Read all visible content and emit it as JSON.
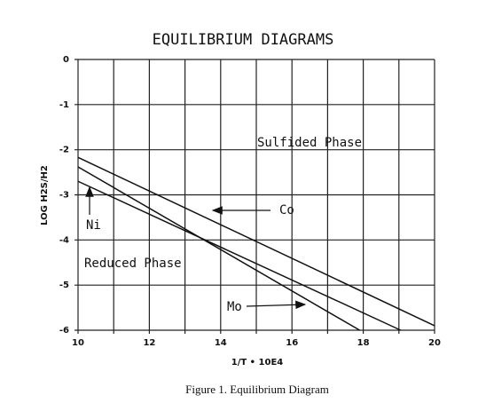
{
  "chart_data": {
    "type": "line",
    "title": "EQUILIBRIUM DIAGRAMS",
    "x_label": "1/T • 10E4",
    "y_label": "LOG H2S/H2",
    "caption": "Figure 1. Equilibrium Diagram",
    "series": [
      {
        "name": "Co",
        "color": "#111111",
        "x": [
          10,
          20
        ],
        "values": [
          -2.17,
          -5.9
        ]
      },
      {
        "name": "Mo",
        "color": "#111111",
        "x": [
          10,
          17.9
        ],
        "values": [
          -2.38,
          -6
        ]
      },
      {
        "name": "Ni",
        "color": "#111111",
        "x": [
          10,
          19.05
        ],
        "values": [
          -2.7,
          -6
        ]
      }
    ],
    "annotations": [
      "Sulfided Phase",
      "Reduced Phase"
    ],
    "xlim": [
      10,
      20
    ],
    "ylim": [
      -6,
      0
    ],
    "xticks": [
      10,
      12,
      14,
      16,
      18,
      20
    ],
    "x_minor_ticks": [
      11,
      13,
      15,
      17,
      19
    ],
    "yticks": [
      0,
      -1,
      -2,
      -3,
      -4,
      -5,
      -6
    ],
    "grid": true
  }
}
